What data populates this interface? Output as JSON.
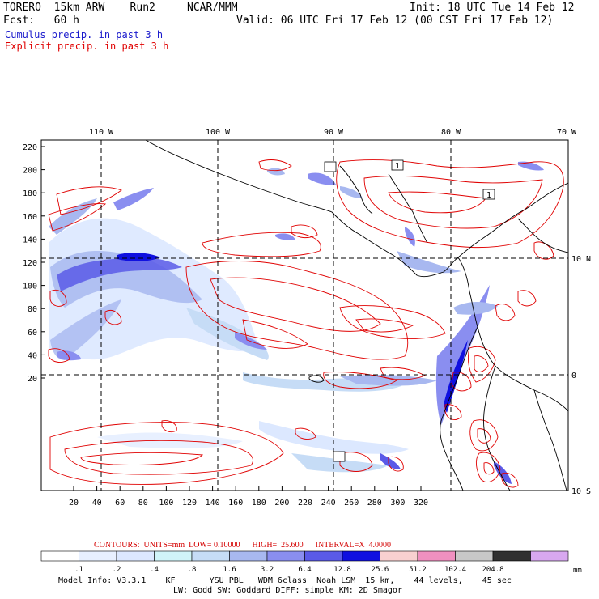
{
  "header": {
    "model": "TORERO  15km ARW",
    "run": "Run2",
    "org": "NCAR/MMM",
    "init": "Init: 18 UTC Tue 14 Feb 12",
    "fcst_label": "Fcst:",
    "fcst_value": "60 h",
    "valid": "Valid: 06 UTC Fri 17 Feb 12 (00 CST Fri 17 Feb 12)"
  },
  "fields": {
    "cumulus": "Cumulus precip. in past 3 h",
    "explicit": "Explicit precip. in past 3 h",
    "cumulus_color": "#1a1acc",
    "explicit_color": "#e00000"
  },
  "axes": {
    "top_lon_labels": [
      "110 W",
      "100 W",
      "90 W",
      "80 W",
      "70 W"
    ],
    "right_lat_labels": [
      "10 N",
      "0",
      "10 S"
    ],
    "left_y_ticks": [
      "220",
      "200",
      "180",
      "160",
      "140",
      "120",
      "100",
      "80",
      "60",
      "40",
      "20"
    ],
    "bottom_x_ticks": [
      "20",
      "40",
      "60",
      "80",
      "100",
      "120",
      "140",
      "160",
      "180",
      "200",
      "220",
      "240",
      "260",
      "280",
      "300",
      "320"
    ]
  },
  "map_labels": {
    "contour_boxes": [
      "1",
      "1"
    ]
  },
  "contours_note": {
    "text": "CONTOURS:  UNITS=mm  LOW= 0.10000      HIGH=  25.600      INTERVAL=X  4.0000"
  },
  "colorbar": {
    "colors": [
      "#ffffff",
      "#e8f0ff",
      "#dce8ff",
      "#d0f4f8",
      "#c6dcf6",
      "#a8b8f0",
      "#8a8ef0",
      "#5a5ae8",
      "#1010e0",
      "#f8d0d0",
      "#f090c0",
      "#c8c8c8",
      "#303030",
      "#d8a8f0"
    ],
    "labels": [
      ".1",
      ".2",
      ".4",
      ".8",
      "1.6",
      "3.2",
      "6.4",
      "12.8",
      "25.6",
      "51.2",
      "102.4",
      "204.8"
    ],
    "units": "mm"
  },
  "footer": {
    "line1": "Model Info: V3.3.1    KF       YSU PBL   WDM 6class  Noah LSM  15 km,    44 levels,    45 sec",
    "line2": "LW: Godd SW: Goddard DIFF: simple KM: 2D Smagor"
  }
}
